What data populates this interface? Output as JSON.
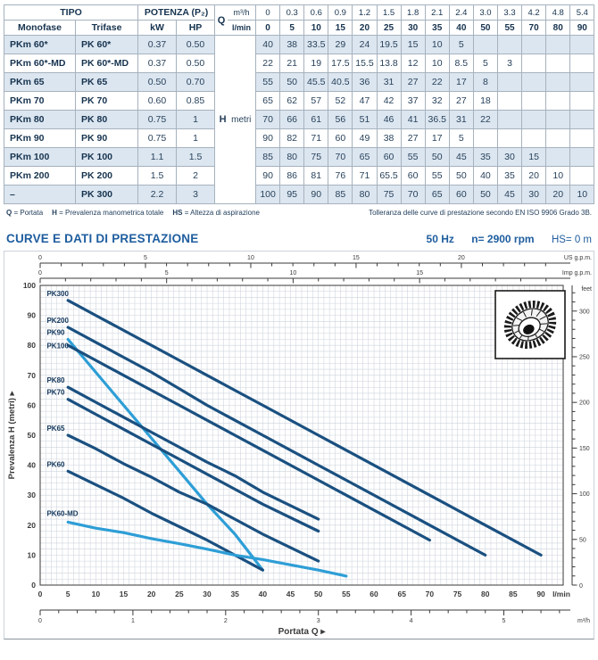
{
  "table": {
    "headers": {
      "tipo": "TIPO",
      "monofase": "Monofase",
      "trifase": "Trifase",
      "potenza": "POTENZA (P₂)",
      "kw": "kW",
      "hp": "HP",
      "q": "Q",
      "m3h": "m³/h",
      "lmin": "l/min",
      "h": "H",
      "metri": "metri"
    },
    "q_m3h": [
      "0",
      "0.3",
      "0.6",
      "0.9",
      "1.2",
      "1.5",
      "1.8",
      "2.1",
      "2.4",
      "3.0",
      "3.3",
      "4.2",
      "4.8",
      "5.4"
    ],
    "q_lmin": [
      "0",
      "5",
      "10",
      "15",
      "20",
      "25",
      "30",
      "35",
      "40",
      "50",
      "55",
      "70",
      "80",
      "90"
    ],
    "rows": [
      {
        "monofase": "PKm 60*",
        "trifase": "PK 60*",
        "kw": "0.37",
        "hp": "0.50",
        "h": [
          "40",
          "38",
          "33.5",
          "29",
          "24",
          "19.5",
          "15",
          "10",
          "5",
          "",
          "",
          "",
          "",
          ""
        ]
      },
      {
        "monofase": "PKm 60*-MD",
        "trifase": "PK 60*-MD",
        "kw": "0.37",
        "hp": "0.50",
        "h": [
          "22",
          "21",
          "19",
          "17.5",
          "15.5",
          "13.8",
          "12",
          "10",
          "8.5",
          "5",
          "3",
          "",
          "",
          ""
        ]
      },
      {
        "monofase": "PKm 65",
        "trifase": "PK 65",
        "kw": "0.50",
        "hp": "0.70",
        "h": [
          "55",
          "50",
          "45.5",
          "40.5",
          "36",
          "31",
          "27",
          "22",
          "17",
          "8",
          "",
          "",
          "",
          ""
        ]
      },
      {
        "monofase": "PKm 70",
        "trifase": "PK 70",
        "kw": "0.60",
        "hp": "0.85",
        "h": [
          "65",
          "62",
          "57",
          "52",
          "47",
          "42",
          "37",
          "32",
          "27",
          "18",
          "",
          "",
          "",
          ""
        ]
      },
      {
        "monofase": "PKm 80",
        "trifase": "PK 80",
        "kw": "0.75",
        "hp": "1",
        "h": [
          "70",
          "66",
          "61",
          "56",
          "51",
          "46",
          "41",
          "36.5",
          "31",
          "22",
          "",
          "",
          "",
          ""
        ]
      },
      {
        "monofase": "PKm 90",
        "trifase": "PK 90",
        "kw": "0.75",
        "hp": "1",
        "h": [
          "90",
          "82",
          "71",
          "60",
          "49",
          "38",
          "27",
          "17",
          "5",
          "",
          "",
          "",
          "",
          ""
        ]
      },
      {
        "monofase": "PKm 100",
        "trifase": "PK 100",
        "kw": "1.1",
        "hp": "1.5",
        "h": [
          "85",
          "80",
          "75",
          "70",
          "65",
          "60",
          "55",
          "50",
          "45",
          "35",
          "30",
          "15",
          "",
          ""
        ]
      },
      {
        "monofase": "PKm 200",
        "trifase": "PK 200",
        "kw": "1.5",
        "hp": "2",
        "h": [
          "90",
          "86",
          "81",
          "76",
          "71",
          "65.5",
          "60",
          "55",
          "50",
          "40",
          "35",
          "20",
          "10",
          ""
        ]
      },
      {
        "monofase": "–",
        "trifase": "PK 300",
        "kw": "2.2",
        "hp": "3",
        "h": [
          "100",
          "95",
          "90",
          "85",
          "80",
          "75",
          "70",
          "65",
          "60",
          "50",
          "45",
          "30",
          "20",
          "10"
        ]
      }
    ]
  },
  "footnote": {
    "legend": [
      {
        "sym": "Q",
        "txt": "= Portata"
      },
      {
        "sym": "H",
        "txt": "= Prevalenza manometrica totale"
      },
      {
        "sym": "HS",
        "txt": "= Altezza di aspirazione"
      }
    ],
    "right": "Tolleranza delle curve di prestazione secondo EN ISO 9906 Grado 3B."
  },
  "section": {
    "title": "CURVE E DATI DI PRESTAZIONE",
    "freq": "50 Hz",
    "speed": "n= 2900 rpm",
    "suction": "HS= 0 m"
  },
  "chart_data": {
    "type": "line",
    "title": "CURVE E DATI DI PRESTAZIONE",
    "xlabel": "Portata Q",
    "ylabel": "Prevalenza H (metri)",
    "x_axis_lmin": {
      "min": 0,
      "max": 94,
      "label_step": 5,
      "unit": "l/min"
    },
    "x_axis_m3h": {
      "min": 0,
      "max": 5.6,
      "label_ticks": [
        0,
        1,
        2,
        3,
        4,
        5
      ],
      "minor_step": 0.2,
      "unit": "m³/h",
      "lmin_per_unit": 16.6667
    },
    "top_axis_us_gpm": {
      "label_ticks": [
        0,
        5,
        10,
        15,
        20
      ],
      "minor_step": 1,
      "max": 24,
      "unit": "US g.p.m.",
      "lmin_per_unit": 3.785
    },
    "top_axis_imp_gpm": {
      "label_ticks": [
        0,
        5,
        10,
        15
      ],
      "minor_step": 1,
      "max": 20,
      "unit": "Imp g.p.m.",
      "lmin_per_unit": 4.546
    },
    "y_axis_m": {
      "min": 0,
      "max": 100,
      "label_step": 10
    },
    "right_axis_feet": {
      "label_ticks": [
        50,
        100,
        150,
        200,
        250,
        300
      ],
      "minor_step": 10,
      "max": 320,
      "unit": "feet",
      "m_per_foot": 0.3048
    },
    "grid": {
      "x_minor_lmin": 1,
      "y_minor_m": 2
    },
    "colors": {
      "dark": "#1a5080",
      "light": "#2e9ed6"
    },
    "series": [
      {
        "name": "PK300",
        "color": "dark",
        "points": [
          [
            5,
            95
          ],
          [
            10,
            90
          ],
          [
            15,
            85
          ],
          [
            20,
            80
          ],
          [
            25,
            75
          ],
          [
            30,
            70
          ],
          [
            35,
            65
          ],
          [
            40,
            60
          ],
          [
            50,
            50
          ],
          [
            55,
            45
          ],
          [
            70,
            30
          ],
          [
            80,
            20
          ],
          [
            90,
            10
          ]
        ]
      },
      {
        "name": "PK200",
        "color": "dark",
        "points": [
          [
            5,
            86
          ],
          [
            10,
            81
          ],
          [
            15,
            76
          ],
          [
            20,
            71
          ],
          [
            25,
            65.5
          ],
          [
            30,
            60
          ],
          [
            35,
            55
          ],
          [
            40,
            50
          ],
          [
            50,
            40
          ],
          [
            55,
            35
          ],
          [
            70,
            20
          ],
          [
            80,
            10
          ]
        ]
      },
      {
        "name": "PK90",
        "color": "light",
        "points": [
          [
            5,
            82
          ],
          [
            10,
            71
          ],
          [
            15,
            60
          ],
          [
            20,
            49
          ],
          [
            25,
            38
          ],
          [
            30,
            27
          ],
          [
            35,
            17
          ],
          [
            40,
            5
          ]
        ]
      },
      {
        "name": "PK100",
        "color": "dark",
        "points": [
          [
            5,
            80
          ],
          [
            10,
            75
          ],
          [
            15,
            70
          ],
          [
            20,
            65
          ],
          [
            25,
            60
          ],
          [
            30,
            55
          ],
          [
            35,
            50
          ],
          [
            40,
            45
          ],
          [
            50,
            35
          ],
          [
            55,
            30
          ],
          [
            70,
            15
          ]
        ]
      },
      {
        "name": "PK80",
        "color": "dark",
        "points": [
          [
            5,
            66
          ],
          [
            10,
            61
          ],
          [
            15,
            56
          ],
          [
            20,
            51
          ],
          [
            25,
            46
          ],
          [
            30,
            41
          ],
          [
            35,
            36.5
          ],
          [
            40,
            31
          ],
          [
            50,
            22
          ]
        ]
      },
      {
        "name": "PK70",
        "color": "dark",
        "points": [
          [
            5,
            62
          ],
          [
            10,
            57
          ],
          [
            15,
            52
          ],
          [
            20,
            47
          ],
          [
            25,
            42
          ],
          [
            30,
            37
          ],
          [
            35,
            32
          ],
          [
            40,
            27
          ],
          [
            50,
            18
          ]
        ]
      },
      {
        "name": "PK65",
        "color": "dark",
        "points": [
          [
            5,
            50
          ],
          [
            10,
            45.5
          ],
          [
            15,
            40.5
          ],
          [
            20,
            36
          ],
          [
            25,
            31
          ],
          [
            30,
            27
          ],
          [
            35,
            22
          ],
          [
            40,
            17
          ],
          [
            50,
            8
          ]
        ]
      },
      {
        "name": "PK60",
        "color": "dark",
        "points": [
          [
            5,
            38
          ],
          [
            10,
            33.5
          ],
          [
            15,
            29
          ],
          [
            20,
            24
          ],
          [
            25,
            19.5
          ],
          [
            30,
            15
          ],
          [
            35,
            10
          ],
          [
            40,
            5
          ]
        ]
      },
      {
        "name": "PK60-MD",
        "color": "light",
        "points": [
          [
            5,
            21
          ],
          [
            10,
            19
          ],
          [
            15,
            17.5
          ],
          [
            20,
            15.5
          ],
          [
            25,
            13.8
          ],
          [
            30,
            12
          ],
          [
            35,
            10
          ],
          [
            40,
            8.5
          ],
          [
            50,
            5
          ],
          [
            55,
            3
          ]
        ]
      }
    ],
    "curve_labels": [
      {
        "text": "PK300",
        "x": 1.2,
        "y": 96.5
      },
      {
        "text": "PK200",
        "x": 1.2,
        "y": 87.5
      },
      {
        "text": "PK90",
        "x": 1.2,
        "y": 83.5
      },
      {
        "text": "PK100",
        "x": 1.2,
        "y": 79
      },
      {
        "text": "PK80",
        "x": 1.2,
        "y": 67.5
      },
      {
        "text": "PK70",
        "x": 1.2,
        "y": 63.5
      },
      {
        "text": "PK65",
        "x": 1.2,
        "y": 51.5
      },
      {
        "text": "PK60",
        "x": 1.2,
        "y": 39.5
      },
      {
        "text": "PK60-MD",
        "x": 1.2,
        "y": 23
      }
    ],
    "xlabel_arrow": "▸",
    "ylabel_arrow": "▸",
    "legend_position": "none",
    "inset_icon": "impeller-icon"
  }
}
